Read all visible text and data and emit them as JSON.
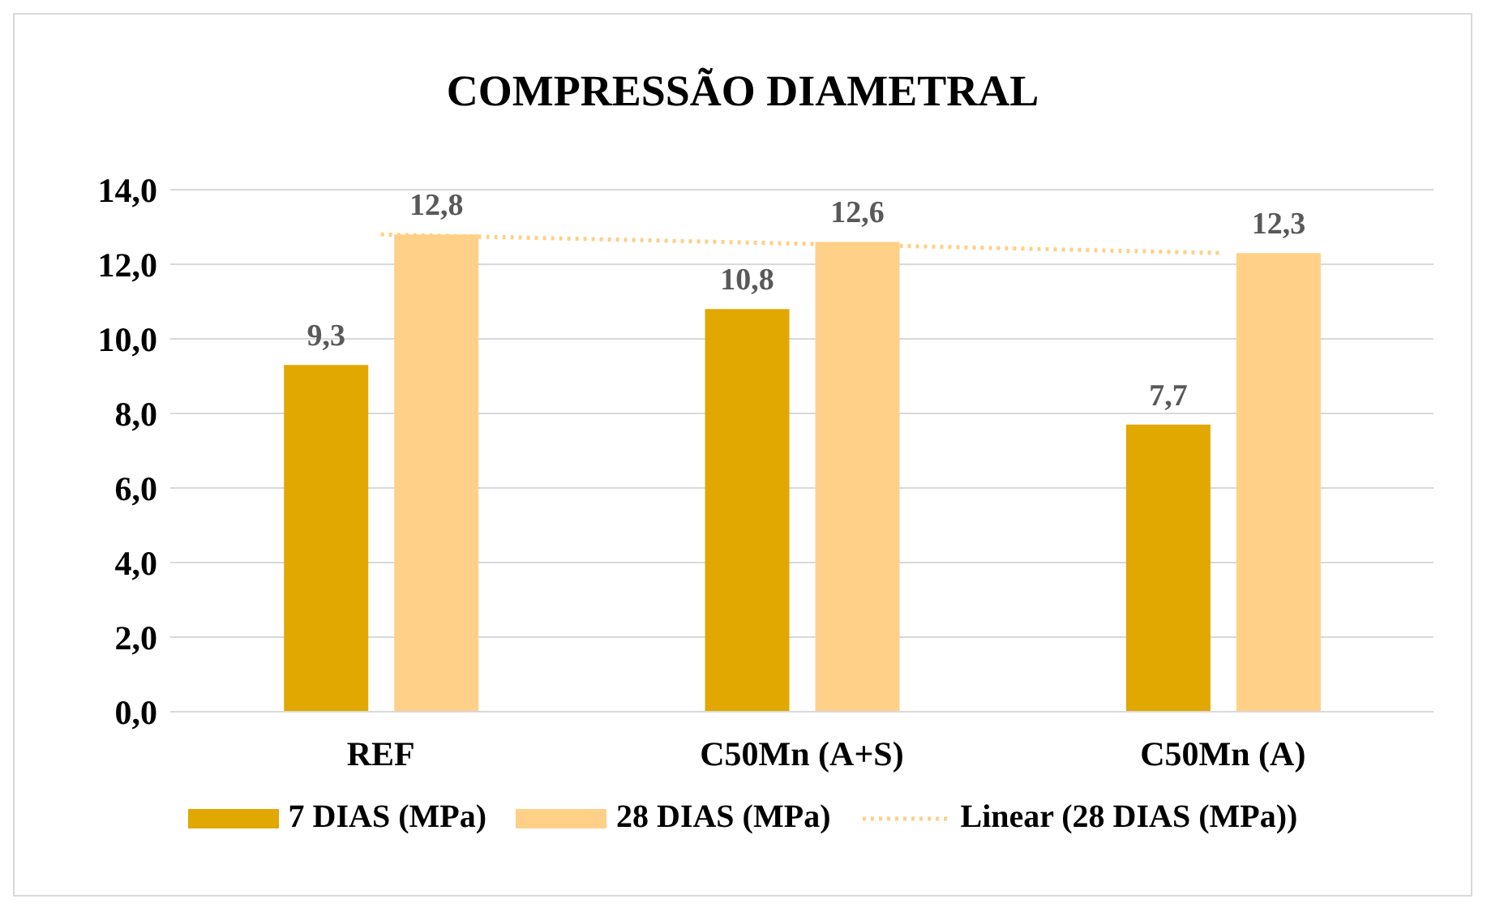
{
  "chart_data": {
    "type": "bar",
    "title": "COMPRESSÃO DIAMETRAL",
    "categories": [
      "REF",
      "C50Mn (A+S)",
      "C50Mn (A)"
    ],
    "series": [
      {
        "name": "7 DIAS (MPa)",
        "color": "#e0a800",
        "values": [
          9.3,
          10.8,
          7.7
        ],
        "value_labels": [
          "9,3",
          "10,8",
          "7,7"
        ]
      },
      {
        "name": "28 DIAS (MPa)",
        "color": "#ffd088",
        "values": [
          12.8,
          12.6,
          12.3
        ],
        "value_labels": [
          "12,8",
          "12,6",
          "12,3"
        ]
      },
      {
        "name": "Linear (28 DIAS (MPa))",
        "type": "line",
        "line_style": "dotted",
        "marker": "none",
        "color": "#ffd088",
        "values": [
          12.8,
          12.55,
          12.3
        ]
      }
    ],
    "ylim": [
      0,
      14
    ],
    "yticks": [
      {
        "value": 0,
        "label": "0,0"
      },
      {
        "value": 2,
        "label": "2,0"
      },
      {
        "value": 4,
        "label": "4,0"
      },
      {
        "value": 6,
        "label": "6,0"
      },
      {
        "value": 8,
        "label": "8,0"
      },
      {
        "value": 10,
        "label": "10,0"
      },
      {
        "value": 12,
        "label": "12,0"
      },
      {
        "value": 14,
        "label": "14,0"
      }
    ],
    "grid": "y",
    "legend": "bottom"
  }
}
